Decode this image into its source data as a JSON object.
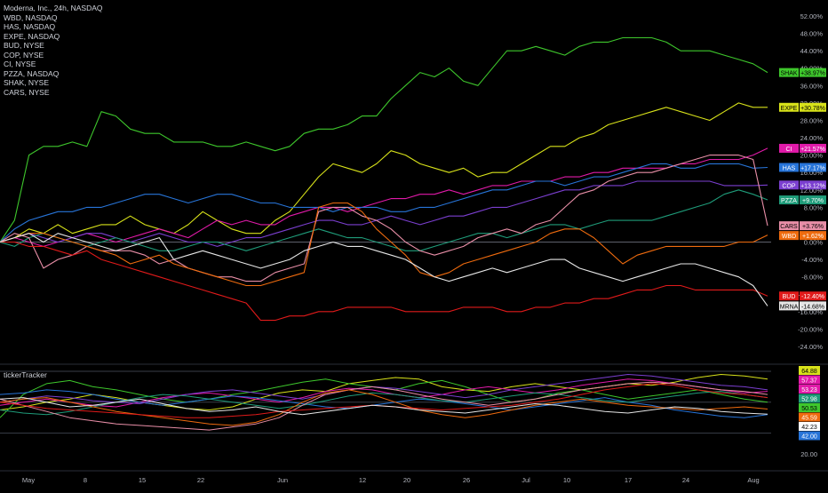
{
  "header": {
    "main_symbol": "Moderna, Inc., 24h, NASDAQ",
    "compare_symbols": [
      "WBD, NASDAQ",
      "HAS, NASDAQ",
      "EXPE, NASDAQ",
      "BUD, NYSE",
      "COP, NYSE",
      "CI, NYSE",
      "PZZA, NASDAQ",
      "SHAK, NYSE",
      "CARS, NYSE"
    ]
  },
  "indicator": {
    "name": "tickerTracker"
  },
  "colors": {
    "background": "#000000",
    "zero_line": "#5d606b",
    "axis_text": "#b2b5be"
  },
  "chart_data": [
    {
      "type": "line",
      "y_unit": "%",
      "ylim": [
        -24,
        52
      ],
      "y_ticks": [
        "52.00%",
        "48.00%",
        "44.00%",
        "40.00%",
        "36.00%",
        "32.00%",
        "28.00%",
        "24.00%",
        "20.00%",
        "16.00%",
        "12.00%",
        "8.00%",
        "4.00%",
        "0.00%",
        "-4.00%",
        "-8.00%",
        "-12.00%",
        "-16.00%",
        "-20.00%",
        "-24.00%"
      ],
      "x_ticks": [
        "May",
        "8",
        "15",
        "22",
        "Jun",
        "12",
        "20",
        "26",
        "Jul",
        "10",
        "17",
        "24",
        "Aug"
      ],
      "grid": false,
      "legend": "top-left",
      "series": [
        {
          "name": "SHAK",
          "color": "#3ec72c",
          "last": "+38.97%",
          "values": [
            0,
            5,
            20,
            22,
            22,
            23,
            22,
            30,
            29,
            26,
            25,
            25,
            23,
            23,
            23,
            22,
            22,
            23,
            22,
            21,
            22,
            25,
            26,
            26,
            27,
            29,
            29,
            33,
            36,
            39,
            38,
            40,
            37,
            36,
            40,
            44,
            44,
            45,
            44,
            43,
            45,
            46,
            46,
            47,
            47,
            47,
            46,
            44,
            44,
            44,
            43,
            42,
            41,
            39
          ]
        },
        {
          "name": "EXPE",
          "color": "#d8e21a",
          "last": "+30.78%",
          "values": [
            0,
            1,
            3,
            2,
            4,
            2,
            3,
            4,
            4,
            6,
            4,
            3,
            2,
            4,
            7,
            5,
            3,
            2,
            2,
            5,
            7,
            11,
            15,
            18,
            17,
            16,
            18,
            21,
            20,
            18,
            17,
            16,
            17,
            15,
            16,
            16,
            18,
            20,
            22,
            22,
            24,
            25,
            27,
            28,
            29,
            30,
            31,
            30,
            29,
            28,
            30,
            32,
            31,
            31
          ]
        },
        {
          "name": "CI",
          "color": "#e11aa9",
          "last": "+21.57%",
          "values": [
            0,
            1,
            0,
            -1,
            0,
            1,
            2,
            1,
            0,
            1,
            2,
            3,
            2,
            1,
            3,
            5,
            4,
            5,
            4,
            4,
            6,
            7,
            8,
            8,
            7,
            8,
            9,
            10,
            10,
            11,
            11,
            12,
            11,
            12,
            13,
            13,
            14,
            14,
            14,
            15,
            15,
            16,
            16,
            17,
            17,
            17,
            17,
            18,
            18,
            19,
            19,
            19,
            20,
            21.57
          ]
        },
        {
          "name": "HAS",
          "color": "#2774d8",
          "last": "+17.17%",
          "values": [
            0,
            3,
            5,
            6,
            7,
            7,
            8,
            8,
            9,
            10,
            11,
            11,
            10,
            9,
            10,
            11,
            11,
            10,
            9,
            9,
            8,
            8,
            8,
            7,
            8,
            8,
            8,
            7,
            7,
            8,
            8,
            9,
            10,
            11,
            12,
            12,
            13,
            14,
            14,
            13,
            14,
            15,
            15,
            16,
            17,
            18,
            18,
            17,
            17,
            18,
            18,
            18,
            17,
            17.17
          ]
        },
        {
          "name": "COP",
          "color": "#7b3fd0",
          "last": "+13.12%",
          "values": [
            0,
            1,
            2,
            1,
            0,
            1,
            2,
            2,
            1,
            0,
            1,
            2,
            1,
            0,
            0,
            -1,
            0,
            1,
            1,
            2,
            3,
            4,
            5,
            5,
            4,
            4,
            5,
            6,
            5,
            4,
            5,
            6,
            6,
            7,
            8,
            8,
            9,
            10,
            11,
            12,
            12,
            13,
            13,
            13,
            14,
            14,
            14,
            14,
            14,
            14,
            13,
            13,
            13,
            13.12
          ]
        },
        {
          "name": "PZZA",
          "color": "#1f9c7a",
          "last": "+9.70%",
          "values": [
            0,
            -1,
            1,
            2,
            1,
            0,
            -1,
            0,
            1,
            0,
            -1,
            -2,
            -2,
            -1,
            0,
            0,
            -1,
            -2,
            -1,
            0,
            1,
            2,
            3,
            2,
            1,
            1,
            0,
            -1,
            -2,
            -2,
            -1,
            0,
            1,
            2,
            2,
            1,
            2,
            3,
            4,
            4,
            3,
            4,
            5,
            5,
            5,
            5,
            6,
            7,
            8,
            9,
            11,
            12,
            11,
            9.7
          ]
        },
        {
          "name": "CARS",
          "color": "#e88ea7",
          "last": "+3.76%",
          "values": [
            0,
            2,
            1,
            -6,
            -4,
            -3,
            -1,
            -2,
            -2,
            -2,
            -3,
            -5,
            -4,
            -6,
            -7,
            -8,
            -8,
            -9,
            -9,
            -7,
            -6,
            -5,
            7,
            8,
            8,
            6,
            5,
            3,
            0,
            -2,
            -3,
            -2,
            -1,
            1,
            2,
            3,
            2,
            4,
            5,
            8,
            11,
            12,
            14,
            15,
            16,
            16,
            17,
            18,
            19,
            20,
            20,
            20,
            19,
            3.76
          ]
        },
        {
          "name": "WBD",
          "color": "#ef6b0e",
          "last": "+1.62%",
          "values": [
            0,
            1,
            2,
            2,
            1,
            0,
            -1,
            -2,
            -3,
            -5,
            -4,
            -3,
            -5,
            -6,
            -7,
            -8,
            -9,
            -10,
            -10,
            -9,
            -8,
            -7,
            8,
            9,
            9,
            7,
            3,
            0,
            -3,
            -7,
            -8,
            -7,
            -5,
            -4,
            -3,
            -2,
            -1,
            0,
            2,
            3,
            3,
            1,
            -2,
            -5,
            -3,
            -2,
            -1,
            -1,
            -1,
            -1,
            -1,
            0,
            0,
            1.62
          ]
        },
        {
          "name": "BUD",
          "color": "#e01a1a",
          "last": "-12.40%",
          "values": [
            0,
            0,
            -1,
            -1,
            -2,
            -3,
            -2,
            -4,
            -5,
            -6,
            -7,
            -8,
            -9,
            -10,
            -11,
            -12,
            -13,
            -14,
            -18,
            -18,
            -17,
            -17,
            -16,
            -16,
            -15,
            -15,
            -15,
            -15,
            -16,
            -16,
            -16,
            -16,
            -15,
            -15,
            -15,
            -16,
            -16,
            -15,
            -15,
            -14,
            -14,
            -13,
            -13,
            -12,
            -11,
            -11,
            -10,
            -10,
            -11,
            -11,
            -11,
            -11,
            -11,
            -12.4
          ]
        },
        {
          "name": "MRNA",
          "color": "#e6e6e6",
          "last": "-14.68%",
          "values": [
            0,
            1,
            2,
            0,
            2,
            1,
            0,
            -1,
            -2,
            -1,
            0,
            1,
            -4,
            -3,
            -2,
            -3,
            -4,
            -5,
            -6,
            -5,
            -4,
            -2,
            -1,
            0,
            -1,
            -1,
            -2,
            -3,
            -4,
            -6,
            -8,
            -9,
            -8,
            -7,
            -6,
            -7,
            -6,
            -5,
            -4,
            -4,
            -6,
            -7,
            -8,
            -9,
            -8,
            -7,
            -6,
            -5,
            -5,
            -6,
            -7,
            -8,
            -10,
            -14.68
          ]
        }
      ]
    },
    {
      "type": "line",
      "name": "tickerTracker",
      "ylim": [
        20,
        70
      ],
      "y_ticks": [
        "20.00"
      ],
      "last_values": [
        {
          "label": "64.88",
          "color": "#d8e21a"
        },
        {
          "label": "57.37",
          "color": "#e11aa9"
        },
        {
          "label": "53.23",
          "color": "#e11aa9"
        },
        {
          "label": "52.98",
          "color": "#1f9c7a"
        },
        {
          "label": "50.53",
          "color": "#3ec72c"
        },
        {
          "label": "45.59",
          "color": "#ef6b0e"
        },
        {
          "label": "42.23",
          "color": "#ffffff"
        },
        {
          "label": "42.00",
          "color": "#2774d8"
        }
      ],
      "series": [
        {
          "color": "#d8e21a",
          "values": [
            45,
            47,
            50,
            52,
            55,
            53,
            50,
            48,
            46,
            45,
            47,
            52,
            56,
            58,
            57,
            62,
            64,
            66,
            65,
            60,
            58,
            57,
            60,
            62,
            60,
            58,
            60,
            62,
            61,
            63,
            66,
            68,
            67,
            65
          ]
        },
        {
          "color": "#3ec72c",
          "values": [
            40,
            55,
            62,
            64,
            60,
            58,
            55,
            52,
            50,
            52,
            55,
            57,
            60,
            63,
            65,
            62,
            60,
            58,
            62,
            64,
            60,
            55,
            50,
            52,
            56,
            58,
            55,
            52,
            54,
            56,
            58,
            55,
            52,
            50
          ]
        },
        {
          "color": "#e11aa9",
          "values": [
            48,
            50,
            52,
            50,
            48,
            47,
            50,
            53,
            55,
            56,
            54,
            52,
            50,
            53,
            57,
            59,
            58,
            55,
            53,
            55,
            58,
            60,
            58,
            56,
            58,
            61,
            63,
            65,
            64,
            62,
            60,
            58,
            56,
            57
          ]
        },
        {
          "color": "#2774d8",
          "values": [
            55,
            56,
            58,
            57,
            55,
            52,
            50,
            48,
            50,
            52,
            54,
            53,
            51,
            49,
            47,
            46,
            48,
            50,
            52,
            51,
            49,
            47,
            45,
            47,
            49,
            51,
            53,
            50,
            48,
            45,
            43,
            41,
            40,
            42
          ]
        },
        {
          "color": "#7b3fd0",
          "values": [
            50,
            52,
            54,
            53,
            51,
            50,
            49,
            52,
            55,
            57,
            58,
            56,
            54,
            52,
            55,
            58,
            60,
            59,
            57,
            55,
            53,
            55,
            58,
            60,
            62,
            64,
            66,
            68,
            67,
            65,
            63,
            61,
            60,
            58
          ]
        },
        {
          "color": "#1f9c7a",
          "values": [
            45,
            43,
            42,
            44,
            47,
            50,
            53,
            55,
            54,
            52,
            50,
            48,
            46,
            48,
            51,
            54,
            56,
            55,
            53,
            51,
            50,
            52,
            54,
            56,
            55,
            53,
            51,
            50,
            52,
            54,
            56,
            57,
            55,
            53
          ]
        },
        {
          "color": "#e88ea7",
          "values": [
            52,
            48,
            44,
            40,
            38,
            36,
            35,
            34,
            33,
            32,
            34,
            36,
            40,
            48,
            55,
            58,
            60,
            58,
            55,
            52,
            50,
            48,
            50,
            52,
            55,
            58,
            60,
            62,
            63,
            62,
            60,
            58,
            57,
            55
          ]
        },
        {
          "color": "#ef6b0e",
          "values": [
            50,
            52,
            53,
            50,
            47,
            44,
            42,
            40,
            38,
            36,
            35,
            37,
            42,
            50,
            56,
            58,
            55,
            50,
            45,
            42,
            40,
            42,
            45,
            48,
            50,
            52,
            50,
            48,
            47,
            46,
            45,
            46,
            47,
            45.59
          ]
        },
        {
          "color": "#e01a1a",
          "values": [
            50,
            48,
            46,
            45,
            44,
            43,
            42,
            41,
            40,
            40,
            41,
            42,
            44,
            45,
            46,
            47,
            48,
            47,
            46,
            45,
            46,
            47,
            48,
            50,
            52,
            55,
            58,
            60,
            62,
            61,
            58,
            56,
            55,
            53
          ]
        },
        {
          "color": "#e6e6e6",
          "values": [
            52,
            53,
            50,
            47,
            48,
            50,
            52,
            49,
            46,
            44,
            45,
            47,
            44,
            42,
            44,
            46,
            48,
            47,
            45,
            44,
            43,
            45,
            47,
            49,
            48,
            46,
            44,
            43,
            45,
            47,
            46,
            44,
            43,
            42.23
          ]
        }
      ]
    }
  ]
}
